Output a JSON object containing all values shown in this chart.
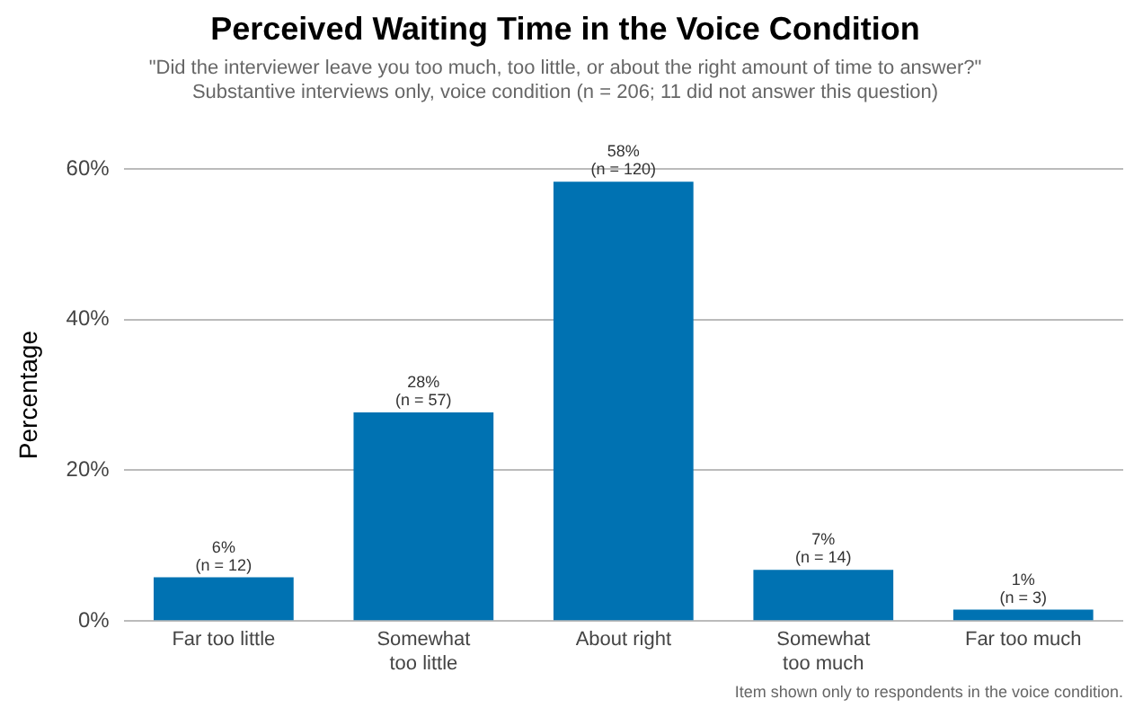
{
  "chart_data": {
    "type": "bar",
    "title": "Perceived Waiting Time in the Voice Condition",
    "subtitle": "\"Did the interviewer leave you too much, too little, or about the right amount of time to answer?\"\nSubstantive interviews only, voice condition (n = 206; 11 did not answer this question)",
    "ylabel": "Percentage",
    "categories": [
      "Far too little",
      "Somewhat\ntoo little",
      "About right",
      "Somewhat\ntoo much",
      "Far too much"
    ],
    "values": [
      5.8,
      27.7,
      58.3,
      6.8,
      1.5
    ],
    "value_labels": [
      "6%\n(n = 12)",
      "28%\n(n = 57)",
      "58%\n(n = 120)",
      "7%\n(n = 14)",
      "1%\n(n = 3)"
    ],
    "color": "#0072b2",
    "ylim": [
      0,
      60
    ],
    "yticks": [
      {
        "value": 0,
        "label": "0%"
      },
      {
        "value": 20,
        "label": "20%"
      },
      {
        "value": 40,
        "label": "40%"
      },
      {
        "value": 60,
        "label": "60%"
      }
    ],
    "grid": "y",
    "annotations": [
      "Item shown only to respondents in the voice condition."
    ]
  }
}
